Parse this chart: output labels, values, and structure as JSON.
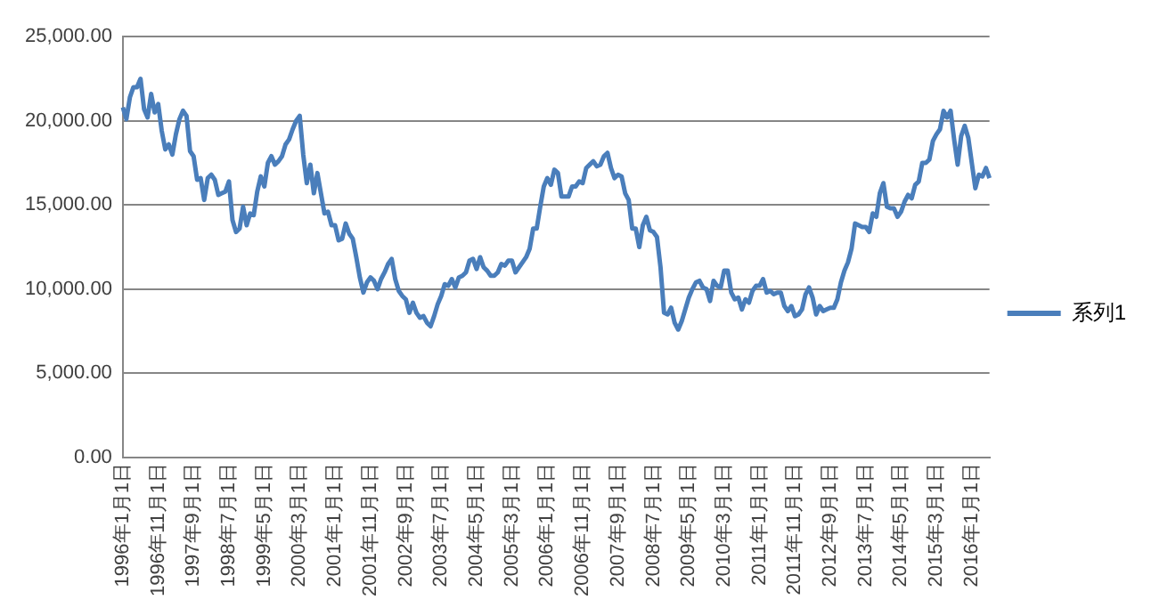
{
  "chart_data": {
    "type": "line",
    "categories": [
      "1996年1月1日",
      null,
      null,
      null,
      null,
      null,
      null,
      null,
      null,
      null,
      "1996年11月1日",
      null,
      null,
      null,
      null,
      null,
      null,
      null,
      null,
      null,
      "1997年9月1日",
      null,
      null,
      null,
      null,
      null,
      null,
      null,
      null,
      null,
      "1998年7月1日",
      null,
      null,
      null,
      null,
      null,
      null,
      null,
      null,
      null,
      "1999年5月1日",
      null,
      null,
      null,
      null,
      null,
      null,
      null,
      null,
      null,
      "2000年3月1日",
      null,
      null,
      null,
      null,
      null,
      null,
      null,
      null,
      null,
      "2001年1月1日",
      null,
      null,
      null,
      null,
      null,
      null,
      null,
      null,
      null,
      "2001年11月1日",
      null,
      null,
      null,
      null,
      null,
      null,
      null,
      null,
      null,
      "2002年9月1日",
      null,
      null,
      null,
      null,
      null,
      null,
      null,
      null,
      null,
      "2003年7月1日",
      null,
      null,
      null,
      null,
      null,
      null,
      null,
      null,
      null,
      "2004年5月1日",
      null,
      null,
      null,
      null,
      null,
      null,
      null,
      null,
      null,
      "2005年3月1日",
      null,
      null,
      null,
      null,
      null,
      null,
      null,
      null,
      null,
      "2006年1月1日",
      null,
      null,
      null,
      null,
      null,
      null,
      null,
      null,
      null,
      "2006年11月1日",
      null,
      null,
      null,
      null,
      null,
      null,
      null,
      null,
      null,
      "2007年9月1日",
      null,
      null,
      null,
      null,
      null,
      null,
      null,
      null,
      null,
      "2008年7月1日",
      null,
      null,
      null,
      null,
      null,
      null,
      null,
      null,
      null,
      "2009年5月1日",
      null,
      null,
      null,
      null,
      null,
      null,
      null,
      null,
      null,
      "2010年3月1日",
      null,
      null,
      null,
      null,
      null,
      null,
      null,
      null,
      null,
      "2011年1月1日",
      null,
      null,
      null,
      null,
      null,
      null,
      null,
      null,
      null,
      "2011年11月1日",
      null,
      null,
      null,
      null,
      null,
      null,
      null,
      null,
      null,
      "2012年9月1日",
      null,
      null,
      null,
      null,
      null,
      null,
      null,
      null,
      null,
      "2013年7月1日",
      null,
      null,
      null,
      null,
      null,
      null,
      null,
      null,
      null,
      "2014年5月1日",
      null,
      null,
      null,
      null,
      null,
      null,
      null,
      null,
      null,
      "2015年3月1日",
      null,
      null,
      null,
      null,
      null,
      null,
      null,
      null,
      null,
      "2016年1月1日",
      null,
      null,
      null,
      null,
      null
    ],
    "series": [
      {
        "name": "系列1",
        "color": "#4a7ebb",
        "values": [
          20800,
          20100,
          21400,
          22000,
          22000,
          22500,
          20700,
          20200,
          21600,
          20500,
          21000,
          19400,
          18300,
          18600,
          18000,
          19200,
          20100,
          20600,
          20300,
          18200,
          17900,
          16500,
          16600,
          15300,
          16600,
          16800,
          16500,
          15600,
          15700,
          15800,
          16400,
          14100,
          13400,
          13600,
          14900,
          13800,
          14500,
          14400,
          15800,
          16700,
          16100,
          17500,
          17900,
          17400,
          17600,
          17900,
          18600,
          18900,
          19500,
          20000,
          20300,
          18000,
          16300,
          17400,
          15700,
          16900,
          15700,
          14500,
          14600,
          13800,
          13800,
          12900,
          13000,
          13900,
          13300,
          13000,
          11900,
          10700,
          9800,
          10400,
          10700,
          10500,
          10000,
          10600,
          11000,
          11500,
          11800,
          10600,
          9900,
          9600,
          9400,
          8600,
          9200,
          8600,
          8300,
          8400,
          8000,
          7800,
          8400,
          9100,
          9600,
          10300,
          10200,
          10600,
          10100,
          10700,
          10800,
          11000,
          11700,
          11800,
          11200,
          11900,
          11300,
          11100,
          10800,
          10800,
          11000,
          11500,
          11400,
          11700,
          11700,
          11000,
          11300,
          11600,
          11900,
          12400,
          13600,
          13600,
          14900,
          16100,
          16600,
          16200,
          17100,
          16900,
          15500,
          15500,
          15500,
          16100,
          16100,
          16400,
          16300,
          17200,
          17400,
          17600,
          17300,
          17400,
          17900,
          18100,
          17200,
          16600,
          16800,
          16700,
          15700,
          15300,
          13600,
          13600,
          12500,
          13800,
          14300,
          13500,
          13400,
          13100,
          11300,
          8600,
          8500,
          8900,
          8000,
          7600,
          8100,
          8800,
          9500,
          10000,
          10400,
          10500,
          10100,
          10000,
          9300,
          10500,
          10200,
          10100,
          11100,
          11100,
          9800,
          9400,
          9500,
          8800,
          9400,
          9200,
          9900,
          10200,
          10200,
          10600,
          9800,
          9900,
          9700,
          9800,
          9800,
          9000,
          8700,
          9000,
          8400,
          8500,
          8800,
          9700,
          10100,
          9500,
          8500,
          9000,
          8700,
          8800,
          8900,
          8900,
          9400,
          10400,
          11100,
          11600,
          12400,
          13900,
          13800,
          13700,
          13700,
          13400,
          14500,
          14300,
          15700,
          16300,
          14900,
          14800,
          14800,
          14300,
          14600,
          15200,
          15600,
          15400,
          16200,
          16400,
          17500,
          17500,
          17700,
          18800,
          19200,
          19500,
          20600,
          20200,
          20600,
          18900,
          17400,
          19100,
          19700,
          19000,
          17500,
          16000,
          16800,
          16700,
          17200,
          16600
        ]
      }
    ],
    "ylim": [
      0,
      25000
    ],
    "yticks": [
      {
        "value": 0,
        "label": "0.00"
      },
      {
        "value": 5000,
        "label": "5,000.00"
      },
      {
        "value": 10000,
        "label": "10,000.00"
      },
      {
        "value": 15000,
        "label": "15,000.00"
      },
      {
        "value": 20000,
        "label": "20,000.00"
      },
      {
        "value": 25000,
        "label": "25,000.00"
      }
    ],
    "grid": "y",
    "legend": "right",
    "marker": "none",
    "line_style": "solid"
  }
}
